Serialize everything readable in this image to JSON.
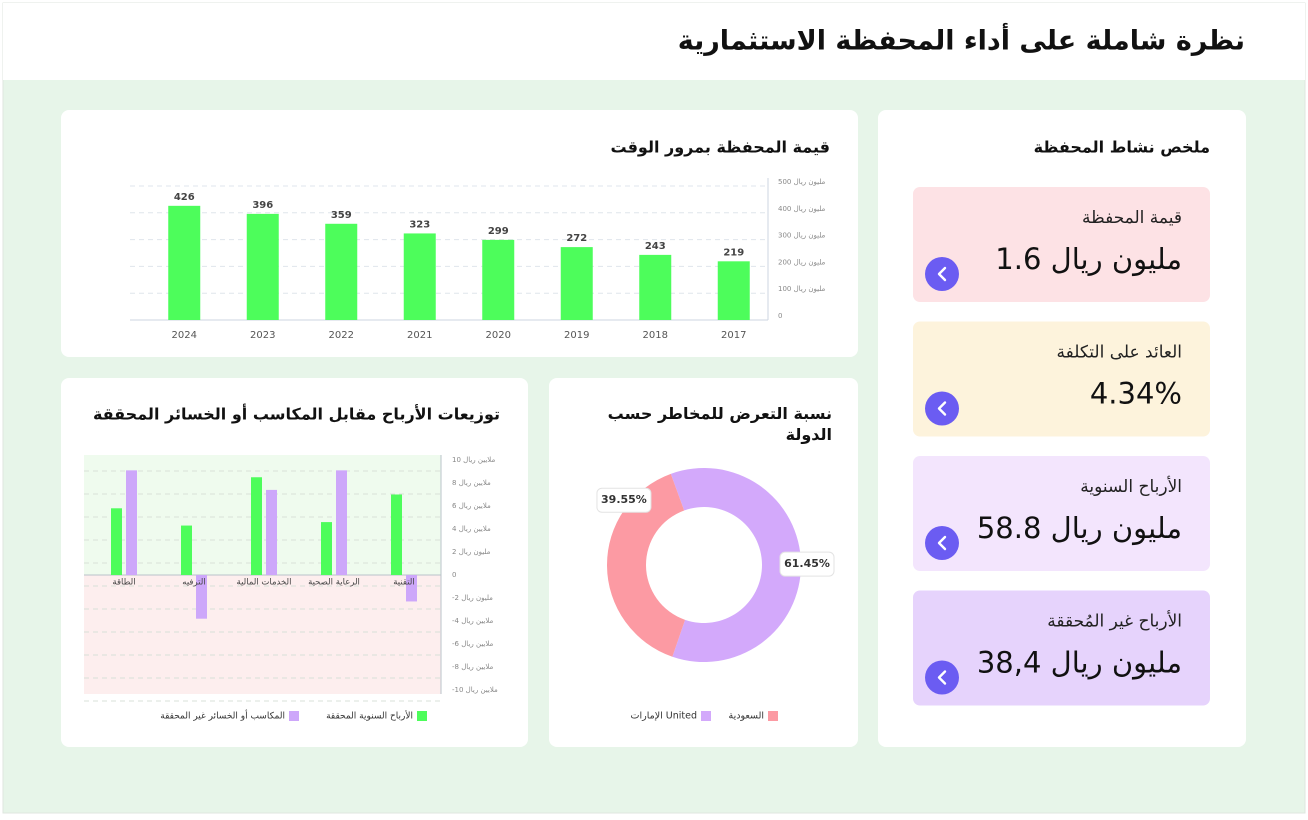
{
  "header": {
    "title": "نظرة شاملة على أداء المحفظة الاستثمارية"
  },
  "summary": {
    "title": "ملخص نشاط المحفظة",
    "cards": [
      {
        "label": "قيمة المحفظة",
        "value": "1.6 مليون ريال",
        "color": "#fde2e5"
      },
      {
        "label": "العائد على التكلفة",
        "value": "4.34%",
        "color": "#fdf3dc"
      },
      {
        "label": "الأرباح السنوية",
        "value": "58.8 مليون ريال",
        "color": "#f3e5fd"
      },
      {
        "label": "الأرباح غير المُحققة",
        "value": "38,4 مليون ريال",
        "color": "#e6d3fc"
      }
    ]
  },
  "chart_data": [
    {
      "type": "bar",
      "title": "قيمة المحفظة بمرور الوقت",
      "categories": [
        "2024",
        "2023",
        "2022",
        "2021",
        "2020",
        "2019",
        "2018",
        "2017"
      ],
      "values": [
        426,
        396,
        359,
        323,
        299,
        272,
        243,
        219
      ],
      "color": "#4dfd5b",
      "ylim": [
        0,
        500
      ],
      "yticks": [
        0,
        {
          "value": 100,
          "label": "100 مليون ريال"
        },
        {
          "value": 200,
          "label": "200 مليون ريال"
        },
        {
          "value": 300,
          "label": "300 مليون ريال"
        },
        {
          "value": 400,
          "label": "400 مليون ريال"
        },
        {
          "value": 500,
          "label": "500 مليون ريال"
        }
      ],
      "grid": true
    },
    {
      "type": "grouped_bar",
      "title": "توزيعات الأرباح مقابل المكاسب أو الخسائر المحققة",
      "categories": [
        "الطاقة",
        "الترفيه",
        "الخدمات المالية",
        "الرعاية الصحية",
        "التقنية"
      ],
      "series": [
        {
          "name": "الأرباح السنوية المحققة",
          "color": "#4dfd5b",
          "values": [
            5.8,
            4.3,
            8.5,
            4.6,
            7.0
          ]
        },
        {
          "name": "المكاسب أو الخسائر غير المحققة",
          "color": "#cda7fa",
          "values": [
            9.1,
            -3.8,
            7.4,
            9.1,
            -2.3
          ]
        }
      ],
      "ylim": [
        -10,
        10
      ],
      "yticks": [
        {
          "value": 10,
          "label": "10 ملايين ريال"
        },
        {
          "value": 8,
          "label": "8 ملايين ريال"
        },
        {
          "value": 6,
          "label": "6 ملايين ريال"
        },
        {
          "value": 4,
          "label": "4 ملايين ريال"
        },
        {
          "value": 2,
          "label": "2 مليون ريال"
        },
        0,
        {
          "value": -2,
          "label": "-2 مليون ريال"
        },
        {
          "value": -4,
          "label": "-4 ملايين ريال"
        },
        {
          "value": -6,
          "label": "-6 ملايين ريال"
        },
        {
          "value": -8,
          "label": "-8 ملايين ريال"
        },
        {
          "value": -10,
          "label": "-10 ملايين ريال"
        }
      ],
      "grid": true
    },
    {
      "type": "donut",
      "title": "نسبة التعرض للمخاطر حسب الدولة",
      "categories": [
        "السعودية",
        "الإمارات United"
      ],
      "values": [
        39.55,
        61.45
      ],
      "value_labels": [
        "39.55%",
        "61.45%"
      ],
      "colors": [
        "#fc9aa3",
        "#d3a9fb"
      ]
    }
  ]
}
